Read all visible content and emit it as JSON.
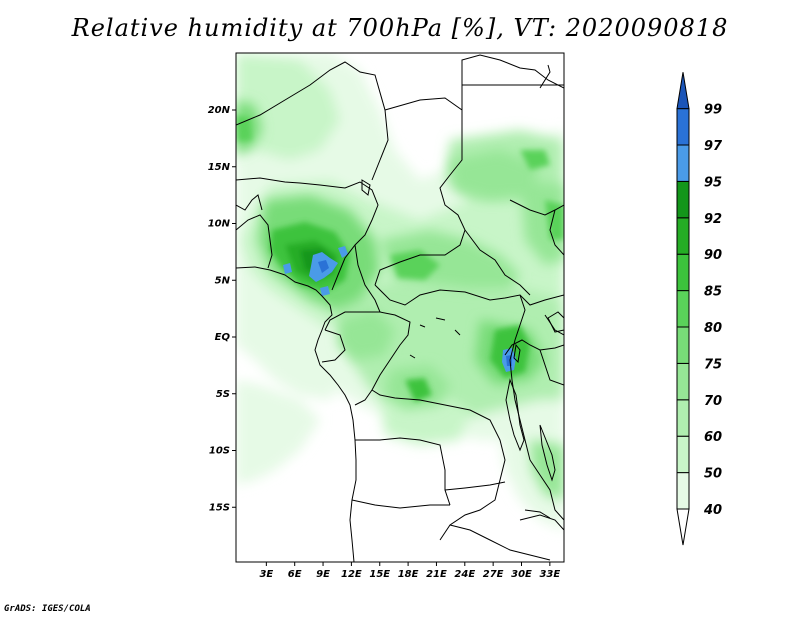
{
  "title": "Relative humidity at 700hPa [%], VT: 2020090818",
  "footer": "GrADS: IGES/COLA",
  "map": {
    "lat_labels": [
      {
        "label": "20N",
        "value": 20
      },
      {
        "label": "15N",
        "value": 15
      },
      {
        "label": "10N",
        "value": 10
      },
      {
        "label": "5N",
        "value": 5
      },
      {
        "label": "EQ",
        "value": 0
      },
      {
        "label": "5S",
        "value": -5
      },
      {
        "label": "10S",
        "value": -10
      },
      {
        "label": "15S",
        "value": -15
      }
    ],
    "lon_labels": [
      {
        "label": "3E",
        "value": 3
      },
      {
        "label": "6E",
        "value": 6
      },
      {
        "label": "9E",
        "value": 9
      },
      {
        "label": "12E",
        "value": 12
      },
      {
        "label": "15E",
        "value": 15
      },
      {
        "label": "18E",
        "value": 18
      },
      {
        "label": "21E",
        "value": 21
      },
      {
        "label": "24E",
        "value": 24
      },
      {
        "label": "27E",
        "value": 27
      },
      {
        "label": "30E",
        "value": 30
      },
      {
        "label": "33E",
        "value": 33
      }
    ]
  },
  "colorbar": {
    "levels": [
      {
        "label": "40",
        "color": "#e6fae6"
      },
      {
        "label": "50",
        "color": "#c8f5c8"
      },
      {
        "label": "60",
        "color": "#b0eeb0"
      },
      {
        "label": "70",
        "color": "#96e696"
      },
      {
        "label": "75",
        "color": "#78dc78"
      },
      {
        "label": "80",
        "color": "#5ad25a"
      },
      {
        "label": "85",
        "color": "#3cc33c"
      },
      {
        "label": "90",
        "color": "#25ad25"
      },
      {
        "label": "92",
        "color": "#13961a"
      },
      {
        "label": "95",
        "color": "#4a9be8"
      },
      {
        "label": "97",
        "color": "#2a72d6"
      },
      {
        "label": "99",
        "color": "#1b55b8"
      }
    ],
    "below_color": "#ffffff"
  }
}
